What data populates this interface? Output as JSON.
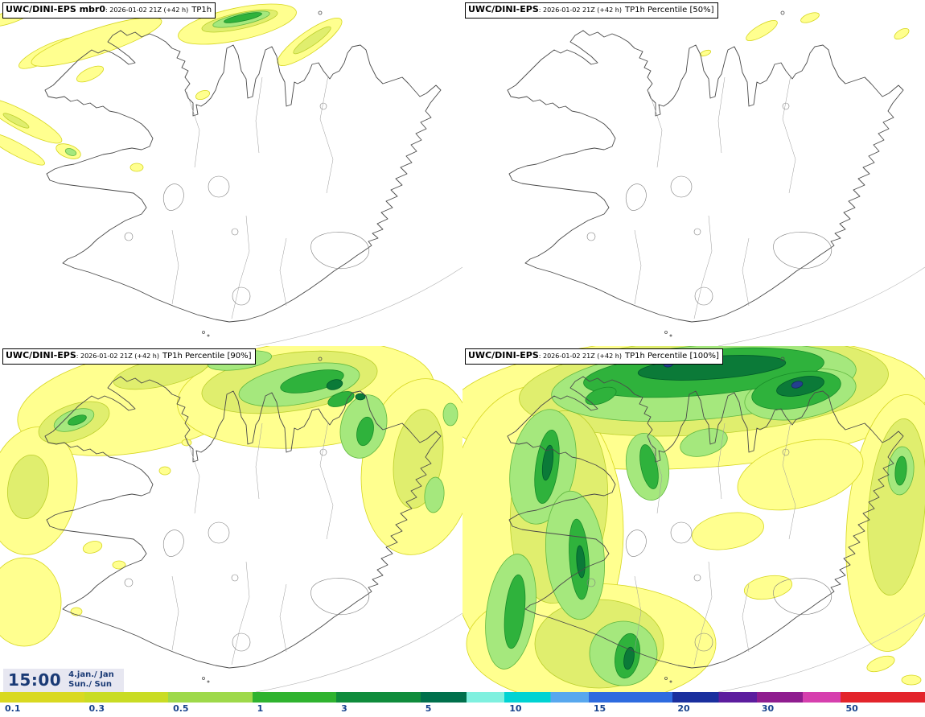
{
  "panels": [
    {
      "name": "member-0",
      "title_bold": "UWC/DINI-EPS mbr0",
      "title_meta": ": 2026-01-02 21Z (+42 h)",
      "title_param": "TP1h"
    },
    {
      "name": "percentile-50",
      "title_bold": "UWC/DINI-EPS",
      "title_meta": ": 2026-01-02 21Z (+42 h)",
      "title_param": "TP1h Percentile [50%]"
    },
    {
      "name": "percentile-90",
      "title_bold": "UWC/DINI-EPS",
      "title_meta": ": 2026-01-02 21Z (+42 h)",
      "title_param": "TP1h Percentile [90%]"
    },
    {
      "name": "percentile-100",
      "title_bold": "UWC/DINI-EPS",
      "title_meta": ": 2026-01-02 21Z (+42 h)",
      "title_param": "TP1h Percentile [100%]"
    }
  ],
  "valid_time": {
    "time": "15:00",
    "date": "4.jan./ Jan",
    "day": "Sun./ Sun"
  },
  "legend": {
    "labels": [
      "0.1",
      "0.3",
      "0.5",
      "1",
      "3",
      "5",
      "10",
      "15",
      "20",
      "30",
      "50"
    ],
    "segments": [
      "#d9d921",
      "#c9dc24",
      "#9ed94a",
      "#2fb32f",
      "#0f8c3c",
      "linear-gradient(90deg,#00704c 0%,#00704c 55%,#7ff0df 55%,#7ff0df 100%)",
      "linear-gradient(90deg,#00d3d3 0%,#00d3d3 55%,#58a8ee 55%,#58a8ee 100%)",
      "#2e6bdf",
      "linear-gradient(90deg,#1a2f9e 0%,#1a2f9e 55%,#5c1d9e 55%,#5c1d9e 100%)",
      "linear-gradient(90deg,#8f1d8f 0%,#8f1d8f 55%,#d63fae 55%,#d63fae 100%)",
      "#e3242b"
    ],
    "text_color": "#16418c"
  },
  "map_colors": {
    "c-y": "#ffff8f",
    "e-y": "#d6d61f",
    "c-yg": "#e0ee6e",
    "e-yg": "#bccf2c",
    "c-lg": "#a5e87d",
    "e-lg": "#62b840",
    "c-g": "#2fb23c",
    "e-g": "#188c28",
    "c-dg": "#0b7a38",
    "e-dg": "#005a2a",
    "c-nv": "#24408f",
    "e-nv": "#15295f"
  }
}
